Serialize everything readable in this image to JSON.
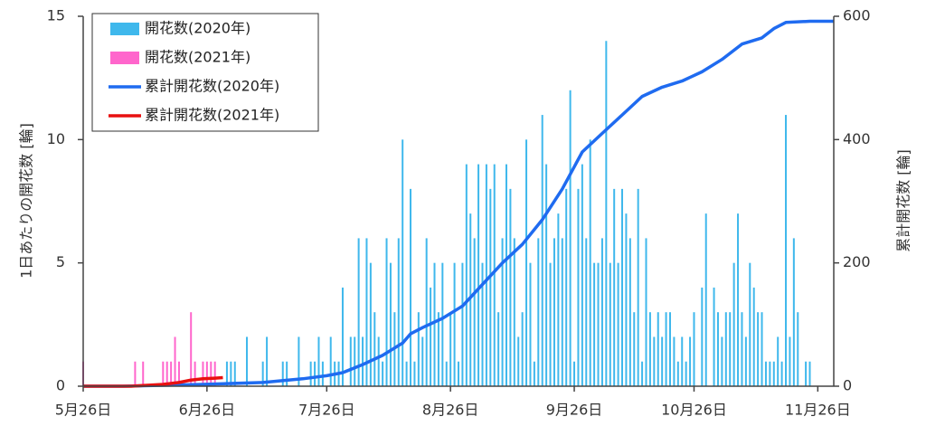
{
  "chart_data": {
    "type": "combo",
    "xlabel_ticks_note_free": null,
    "ylabel": "1日あたりの開花数 [輪]",
    "y2label": "累計開花数 [輪]",
    "xlim": [
      0,
      188
    ],
    "xticks": [
      {
        "value": 0,
        "label": "5月26日"
      },
      {
        "value": 31,
        "label": "6月26日"
      },
      {
        "value": 61,
        "label": "7月26日"
      },
      {
        "value": 92,
        "label": "8月26日"
      },
      {
        "value": 123,
        "label": "9月26日"
      },
      {
        "value": 153,
        "label": "10月26日"
      },
      {
        "value": 184,
        "label": "11月26日"
      }
    ],
    "ylim": [
      0,
      15
    ],
    "yticks": [
      0,
      5,
      10,
      15
    ],
    "y2lim": [
      0,
      600
    ],
    "y2ticks": [
      0,
      200,
      400,
      600
    ],
    "legend": "upper left",
    "series": [
      {
        "name": "開花数(2020年)",
        "kind": "bar",
        "axis": "y",
        "color": "#3fb8ec",
        "x": [
          36,
          37,
          38,
          41,
          45,
          46,
          50,
          51,
          54,
          57,
          58,
          59,
          60,
          62,
          63,
          64,
          65,
          67,
          68,
          69,
          70,
          71,
          72,
          73,
          74,
          75,
          76,
          77,
          78,
          79,
          80,
          81,
          82,
          83,
          84,
          85,
          86,
          87,
          88,
          89,
          90,
          91,
          92,
          93,
          94,
          95,
          96,
          97,
          98,
          99,
          100,
          101,
          102,
          103,
          104,
          105,
          106,
          107,
          108,
          109,
          110,
          111,
          112,
          113,
          114,
          115,
          116,
          117,
          118,
          119,
          120,
          121,
          122,
          123,
          124,
          125,
          126,
          127,
          128,
          129,
          130,
          131,
          132,
          133,
          134,
          135,
          136,
          137,
          138,
          139,
          140,
          141,
          142,
          143,
          144,
          145,
          146,
          147,
          148,
          149,
          150,
          151,
          152,
          153,
          155,
          156,
          158,
          159,
          160,
          161,
          162,
          163,
          164,
          165,
          166,
          167,
          168,
          169,
          170,
          171,
          172,
          173,
          174,
          175,
          176,
          177,
          178,
          179,
          181,
          182
        ],
        "values": [
          1,
          1,
          1,
          2,
          1,
          2,
          1,
          1,
          2,
          1,
          1,
          2,
          1,
          2,
          1,
          1,
          4,
          2,
          2,
          6,
          2,
          6,
          5,
          3,
          2,
          1,
          6,
          5,
          3,
          6,
          10,
          1,
          8,
          1,
          3,
          2,
          6,
          4,
          5,
          3,
          5,
          1,
          3,
          5,
          1,
          5,
          9,
          7,
          6,
          9,
          5,
          9,
          8,
          9,
          3,
          6,
          9,
          8,
          6,
          2,
          3,
          10,
          5,
          1,
          6,
          11,
          9,
          5,
          6,
          7,
          6,
          8,
          12,
          1,
          8,
          9,
          6,
          10,
          5,
          5,
          6,
          14,
          5,
          8,
          5,
          8,
          7,
          6,
          3,
          8,
          1,
          6,
          3,
          2,
          3,
          2,
          3,
          3,
          2,
          1,
          2,
          1,
          2,
          3,
          4,
          7,
          4,
          3,
          2,
          3,
          3,
          5,
          7,
          3,
          2,
          5,
          4,
          3,
          3,
          1,
          1,
          1,
          2,
          1,
          11,
          2,
          6,
          3,
          1,
          1
        ]
      },
      {
        "name": "開花数(2021年)",
        "kind": "bar",
        "axis": "y",
        "color": "#ff66cc",
        "x": [
          0,
          13,
          15,
          20,
          21,
          22,
          23,
          24,
          27,
          28,
          30,
          31,
          32,
          33
        ],
        "values": [
          1,
          1,
          1,
          1,
          1,
          1,
          2,
          1,
          3,
          1,
          1,
          1,
          1,
          1
        ]
      },
      {
        "name": "累計開花数(2020年)",
        "kind": "line",
        "axis": "y2",
        "color": "#1f6bf0",
        "x": [
          0,
          10,
          30,
          45,
          55,
          61,
          65,
          70,
          75,
          80,
          82,
          85,
          90,
          95,
          100,
          105,
          110,
          115,
          120,
          125,
          130,
          135,
          140,
          145,
          150,
          155,
          160,
          165,
          170,
          173,
          176,
          182,
          188
        ],
        "values": [
          0,
          0,
          3,
          6,
          12,
          17,
          22,
          35,
          50,
          70,
          85,
          95,
          110,
          130,
          165,
          200,
          230,
          270,
          320,
          380,
          410,
          440,
          470,
          485,
          495,
          510,
          530,
          555,
          565,
          580,
          590,
          592,
          592
        ]
      },
      {
        "name": "累計開花数(2021年)",
        "kind": "line",
        "axis": "y2",
        "color": "#e81010",
        "x": [
          0,
          12,
          15,
          20,
          24,
          27,
          30,
          33,
          35
        ],
        "values": [
          0,
          0,
          1,
          3,
          6,
          10,
          12,
          13,
          14
        ]
      }
    ]
  }
}
